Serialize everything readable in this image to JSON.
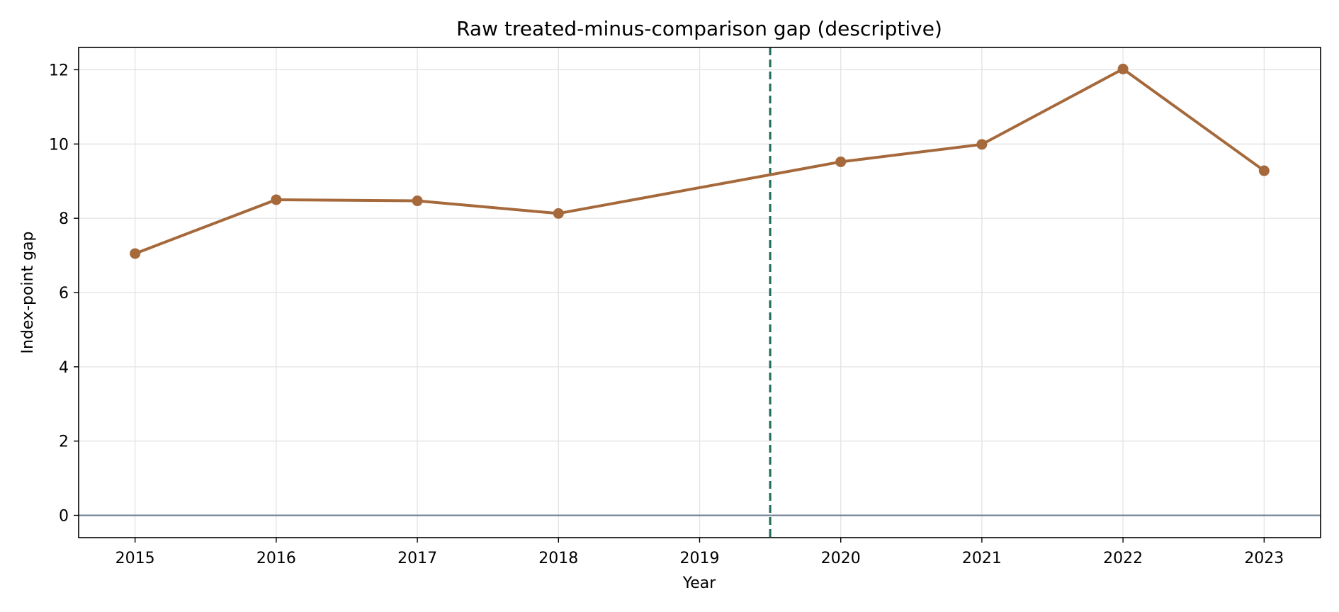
{
  "chart_data": {
    "type": "line",
    "title": "Raw treated-minus-comparison gap (descriptive)",
    "xlabel": "Year",
    "ylabel": "Index-point gap",
    "x": [
      2015,
      2016,
      2017,
      2018,
      2020,
      2021,
      2022,
      2023
    ],
    "xticks": [
      2015,
      2016,
      2017,
      2018,
      2019,
      2020,
      2021,
      2022,
      2023
    ],
    "xlim": [
      2014.6,
      2023.4
    ],
    "yticks": [
      0,
      2,
      4,
      6,
      8,
      10,
      12
    ],
    "ylim": [
      -0.6,
      12.6
    ],
    "series": [
      {
        "values": [
          7.05,
          8.5,
          8.47,
          8.13,
          9.52,
          9.99,
          12.02,
          9.28
        ],
        "color": "#a5693b"
      }
    ],
    "reference_lines": [
      {
        "orientation": "vertical",
        "x": 2019.5,
        "style": "dashed",
        "color": "#1c6b5c"
      },
      {
        "orientation": "horizontal",
        "y": 0,
        "style": "solid",
        "color": "#708090"
      }
    ],
    "grid": true,
    "legend": "none"
  }
}
